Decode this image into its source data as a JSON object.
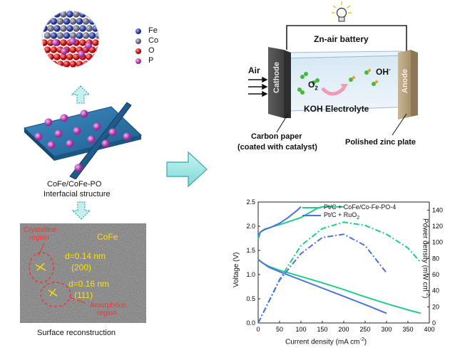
{
  "left": {
    "legend": [
      "Fe",
      "Co",
      "O",
      "P"
    ],
    "interface_caption_1": "CoFe/CoFe-PO",
    "interface_caption_2": "Interfacial structure",
    "tem": {
      "crystalline_1": "Crystalline",
      "crystalline_2": "region",
      "phase": "CoFe",
      "d1": "d=0.14 nm",
      "d1_plane": "(200)",
      "d2": "d=0.16 nm",
      "d2_plane": "(111)",
      "amorphous_1": "Amorphous",
      "amorphous_2": "region"
    },
    "tem_caption": "Surface reconstruction"
  },
  "battery": {
    "title": "Zn-air battery",
    "air": "Air",
    "cathode": "Cathode",
    "anode": "Anode",
    "o2": "O",
    "o2_sub": "2",
    "oh": "OH",
    "oh_sup": "-",
    "electrolyte": "KOH Electrolyte",
    "carbon_1": "Carbon paper",
    "carbon_2": "(coated with catalyst)",
    "zinc": "Polished zinc plate"
  },
  "chart_data": {
    "type": "line",
    "xlabel": "Current density (mA cm",
    "xlabel_sup": "-2",
    "xlabel_end": ")",
    "ylabel": "Voltage (V)",
    "y2label": "Power density (mW cm",
    "y2label_sup": "-2",
    "y2label_end": ")",
    "xlim": [
      0,
      400
    ],
    "ylim": [
      0,
      2.5
    ],
    "y2lim": [
      0,
      150
    ],
    "xticks": [
      "0",
      "50",
      "100",
      "150",
      "200",
      "250",
      "300",
      "350",
      "400"
    ],
    "yticks": [
      "0.0",
      "0.5",
      "1.0",
      "1.5",
      "2.0",
      "2.5"
    ],
    "y2ticks": [
      "0",
      "20",
      "40",
      "60",
      "80",
      "100",
      "120",
      "140"
    ],
    "legend": [
      "Pt/C + CoFe/Co-Fe-PO-4",
      "Pt/C + RuO"
    ],
    "legend_sub": [
      "",
      "2"
    ],
    "colors": [
      "#22cc88",
      "#4a73e0"
    ],
    "series": [
      {
        "name": "Pt/C + CoFe/Co-Fe-PO-4",
        "discharge": [
          [
            0,
            1.32
          ],
          [
            10,
            1.24
          ],
          [
            25,
            1.17
          ],
          [
            50,
            1.09
          ],
          [
            100,
            0.96
          ],
          [
            150,
            0.83
          ],
          [
            200,
            0.69
          ],
          [
            250,
            0.54
          ],
          [
            300,
            0.4
          ],
          [
            350,
            0.27
          ],
          [
            380,
            0.2
          ]
        ],
        "charge": [
          [
            0,
            1.72
          ],
          [
            5,
            1.88
          ],
          [
            15,
            1.94
          ],
          [
            30,
            1.98
          ],
          [
            60,
            2.06
          ],
          [
            100,
            2.18
          ],
          [
            120,
            2.28
          ],
          [
            140,
            2.38
          ],
          [
            150,
            2.4
          ],
          [
            200,
            2.4
          ]
        ],
        "power": [
          [
            0,
            0
          ],
          [
            50,
            54
          ],
          [
            100,
            96
          ],
          [
            150,
            117
          ],
          [
            200,
            125
          ],
          [
            250,
            121
          ],
          [
            300,
            110
          ],
          [
            350,
            93
          ],
          [
            380,
            75
          ]
        ]
      },
      {
        "name": "Pt/C + RuO2",
        "discharge": [
          [
            0,
            1.31
          ],
          [
            25,
            1.15
          ],
          [
            50,
            1.06
          ],
          [
            100,
            0.89
          ],
          [
            150,
            0.72
          ],
          [
            200,
            0.55
          ],
          [
            250,
            0.38
          ],
          [
            300,
            0.2
          ]
        ],
        "charge": [
          [
            0,
            1.8
          ],
          [
            5,
            1.88
          ],
          [
            15,
            1.93
          ],
          [
            30,
            1.98
          ],
          [
            50,
            2.06
          ],
          [
            70,
            2.18
          ],
          [
            90,
            2.32
          ],
          [
            100,
            2.4
          ]
        ],
        "power": [
          [
            0,
            0
          ],
          [
            50,
            53
          ],
          [
            100,
            86
          ],
          [
            150,
            106
          ],
          [
            200,
            110
          ],
          [
            250,
            96
          ],
          [
            300,
            62
          ]
        ]
      }
    ]
  }
}
